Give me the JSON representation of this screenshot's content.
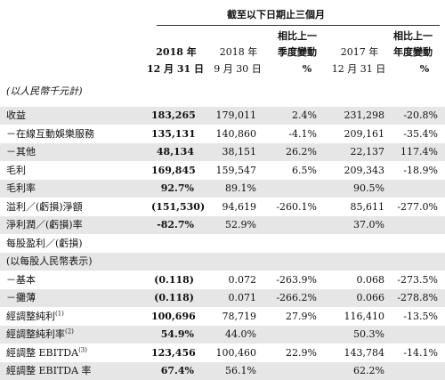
{
  "header": {
    "top_group": "截至以下日期止三個月",
    "qoq_line1": "相比上一",
    "qoq_line2": "季度變動",
    "yoy_line1": "相比上一",
    "yoy_line2": "年度變動",
    "col1_year": "2018 年",
    "col1_date": "12 月 31 日",
    "col2_year": "2018 年",
    "col2_date": "9 月 30 日",
    "col3_unit": "%",
    "col4_year": "2017 年",
    "col4_date": "12 月 31 日",
    "col5_unit": "%"
  },
  "unit_note": "(以人民幣千元計)",
  "rows": [
    {
      "label": "收益",
      "sup": "",
      "c1": "183,265",
      "c2": "179,011",
      "c3": "2.4%",
      "c4": "231,298",
      "c5": "-20.8%",
      "shaded": true
    },
    {
      "label": "－在線互動娛樂服務",
      "sup": "",
      "c1": "135,131",
      "c2": "140,860",
      "c3": "-4.1%",
      "c4": "209,161",
      "c5": "-35.4%",
      "shaded": false
    },
    {
      "label": "－其他",
      "sup": "",
      "c1": "48,134",
      "c2": "38,151",
      "c3": "26.2%",
      "c4": "22,137",
      "c5": "117.4%",
      "shaded": true
    },
    {
      "label": "毛利",
      "sup": "",
      "c1": "169,845",
      "c2": "159,547",
      "c3": "6.5%",
      "c4": "209,343",
      "c5": "-18.9%",
      "shaded": false
    },
    {
      "label": "毛利率",
      "sup": "",
      "c1": "92.7%",
      "c2": "89.1%",
      "c3": "",
      "c4": "90.5%",
      "c5": "",
      "shaded": true
    },
    {
      "label": "溢利／(虧損)淨額",
      "sup": "",
      "c1": "(151,530)",
      "c2": "94,619",
      "c3": "-260.1%",
      "c4": "85,611",
      "c5": "-277.0%",
      "shaded": false
    },
    {
      "label": "淨利潤／(虧損)率",
      "sup": "",
      "c1": "-82.7%",
      "c2": "52.9%",
      "c3": "",
      "c4": "37.0%",
      "c5": "",
      "shaded": true
    },
    {
      "label": "每股盈利／(虧損)",
      "sup": "",
      "c1": "",
      "c2": "",
      "c3": "",
      "c4": "",
      "c5": "",
      "shaded": false
    },
    {
      "label": "(以每股人民幣表示)",
      "sup": "",
      "c1": "",
      "c2": "",
      "c3": "",
      "c4": "",
      "c5": "",
      "shaded": true
    },
    {
      "label": "－基本",
      "sup": "",
      "c1": "(0.118)",
      "c2": "0.072",
      "c3": "-263.9%",
      "c4": "0.068",
      "c5": "-273.5%",
      "shaded": false
    },
    {
      "label": "－攤薄",
      "sup": "",
      "c1": "(0.118)",
      "c2": "0.071",
      "c3": "-266.2%",
      "c4": "0.066",
      "c5": "-278.8%",
      "shaded": true
    },
    {
      "label": "經調整純利",
      "sup": "(1)",
      "c1": "100,696",
      "c2": "78,719",
      "c3": "27.9%",
      "c4": "116,410",
      "c5": "-13.5%",
      "shaded": false
    },
    {
      "label": "經調整純利率",
      "sup": "(2)",
      "c1": "54.9%",
      "c2": "44.0%",
      "c3": "",
      "c4": "50.3%",
      "c5": "",
      "shaded": true
    },
    {
      "label": "經調整 EBITDA",
      "sup": "(3)",
      "c1": "123,456",
      "c2": "100,460",
      "c3": "22.9%",
      "c4": "143,784",
      "c5": "-14.1%",
      "shaded": false
    },
    {
      "label": "經調整 EBITDA 率",
      "sup": "",
      "c1": "67.4%",
      "c2": "56.1%",
      "c3": "",
      "c4": "62.2%",
      "c5": "",
      "shaded": true
    }
  ]
}
